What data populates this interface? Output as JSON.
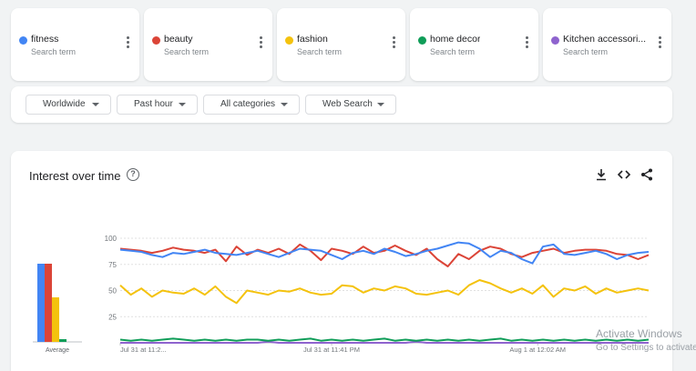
{
  "terms": [
    {
      "name": "fitness",
      "sub": "Search term",
      "color": "#4285f4"
    },
    {
      "name": "beauty",
      "sub": "Search term",
      "color": "#db4437"
    },
    {
      "name": "fashion",
      "sub": "Search term",
      "color": "#f4c20d"
    },
    {
      "name": "home decor",
      "sub": "Search term",
      "color": "#0f9d58"
    },
    {
      "name": "Kitchen accessori...",
      "sub": "Search term",
      "color": "#8e63ce"
    }
  ],
  "filters": {
    "region": "Worldwide",
    "time": "Past hour",
    "category": "All categories",
    "search_type": "Web Search"
  },
  "chart_title": "Interest over time",
  "toolbar_icons": [
    "download-icon",
    "embed-code-icon",
    "share-icon"
  ],
  "watermark": {
    "line1": "Activate Windows",
    "line2": "Go to Settings to activate"
  },
  "chart_data": {
    "type": "line",
    "yticks": [
      25,
      50,
      75,
      100
    ],
    "ylim": [
      0,
      100
    ],
    "xtick_labels": [
      "Jul 31 at 11:2...",
      "Jul 31 at 11:41 PM",
      "Aug 1 at 12:02 AM"
    ],
    "averages": {
      "type": "bar",
      "label": "Average",
      "categories": [
        "fitness",
        "beauty",
        "fashion",
        "home decor",
        "Kitchen accessories"
      ],
      "values": [
        86,
        86,
        49,
        3,
        0
      ]
    },
    "series": [
      {
        "term": "fitness",
        "color": "#4285f4",
        "values": [
          89,
          88,
          87,
          84,
          82,
          86,
          85,
          87,
          89,
          86,
          85,
          84,
          86,
          88,
          85,
          82,
          86,
          90,
          89,
          88,
          84,
          80,
          86,
          88,
          85,
          90,
          87,
          83,
          85,
          88,
          90,
          93,
          96,
          95,
          90,
          82,
          88,
          86,
          80,
          76,
          92,
          94,
          85,
          84,
          86,
          88,
          85,
          80,
          84,
          86,
          87
        ]
      },
      {
        "term": "beauty",
        "color": "#db4437",
        "values": [
          90,
          89,
          88,
          86,
          88,
          91,
          89,
          88,
          86,
          89,
          78,
          92,
          84,
          89,
          86,
          90,
          85,
          94,
          88,
          79,
          90,
          88,
          85,
          92,
          86,
          88,
          93,
          88,
          84,
          90,
          80,
          73,
          85,
          80,
          88,
          92,
          90,
          85,
          82,
          86,
          88,
          90,
          86,
          88,
          89,
          89,
          88,
          85,
          84,
          80,
          84
        ]
      },
      {
        "term": "fashion",
        "color": "#f4c20d",
        "values": [
          55,
          46,
          52,
          44,
          50,
          48,
          47,
          52,
          46,
          54,
          44,
          38,
          50,
          48,
          46,
          50,
          49,
          52,
          48,
          46,
          47,
          55,
          54,
          48,
          52,
          50,
          54,
          52,
          47,
          46,
          48,
          50,
          46,
          55,
          60,
          57,
          52,
          48,
          52,
          47,
          55,
          44,
          52,
          50,
          54,
          47,
          52,
          48,
          50,
          52,
          50
        ]
      },
      {
        "term": "home decor",
        "color": "#0f9d58",
        "values": [
          3,
          2,
          3,
          2,
          3,
          4,
          3,
          2,
          3,
          2,
          3,
          2,
          3,
          3,
          2,
          3,
          2,
          3,
          4,
          2,
          3,
          2,
          3,
          2,
          3,
          4,
          2,
          3,
          2,
          3,
          2,
          3,
          2,
          3,
          2,
          3,
          4,
          2,
          3,
          2,
          3,
          2,
          3,
          2,
          3,
          2,
          3,
          2,
          3,
          2,
          3
        ]
      },
      {
        "term": "Kitchen accessories",
        "color": "#8e63ce",
        "values": [
          0,
          0,
          0,
          0,
          0,
          0,
          0,
          0,
          0,
          0,
          0,
          0,
          0,
          0,
          1,
          0,
          0,
          0,
          0,
          0,
          0,
          0,
          0,
          0,
          0,
          0,
          0,
          0,
          1,
          0,
          0,
          0,
          0,
          0,
          0,
          0,
          0,
          0,
          0,
          0,
          0,
          0,
          0,
          0,
          0,
          0,
          0,
          0,
          0,
          0,
          0
        ]
      }
    ]
  }
}
